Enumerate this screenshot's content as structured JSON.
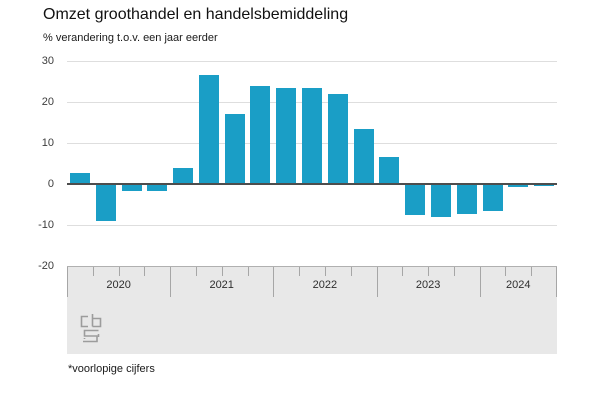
{
  "title": "Omzet groothandel en handelsbemiddeling",
  "subtitle": "% verandering t.o.v. een jaar eerder",
  "footnote": "*voorlopige cijfers",
  "logo_name": "cbs-logo",
  "colors": {
    "bar": "#1a9ec6",
    "zero_line": "#4d4d4d",
    "gridline": "#dedede",
    "band_background": "#e8e8e8",
    "band_border": "#b0b0b0",
    "tick": "#a6a6a6"
  },
  "chart_data": {
    "type": "bar",
    "title": "Omzet groothandel en handelsbemiddeling",
    "ylabel": "% verandering t.o.v. een jaar eerder",
    "xlabel": "",
    "ylim": [
      -20,
      30
    ],
    "yticks": [
      30,
      20,
      10,
      0,
      -10,
      -20
    ],
    "grid": "horizontal",
    "legend": "none",
    "unit": "percent",
    "frequency": "quarterly",
    "groups": [
      {
        "year": "2020",
        "values": [
          2.8,
          -9.0,
          -1.6,
          -1.8
        ]
      },
      {
        "year": "2021",
        "values": [
          4.0,
          26.5,
          17.0,
          24.0
        ]
      },
      {
        "year": "2022",
        "values": [
          23.4,
          23.5,
          21.9,
          13.4
        ]
      },
      {
        "year": "2023",
        "values": [
          6.5,
          -7.6,
          -8.0,
          -7.4
        ]
      },
      {
        "year": "2024",
        "values": [
          -6.6,
          -0.7,
          -0.4
        ]
      }
    ]
  }
}
